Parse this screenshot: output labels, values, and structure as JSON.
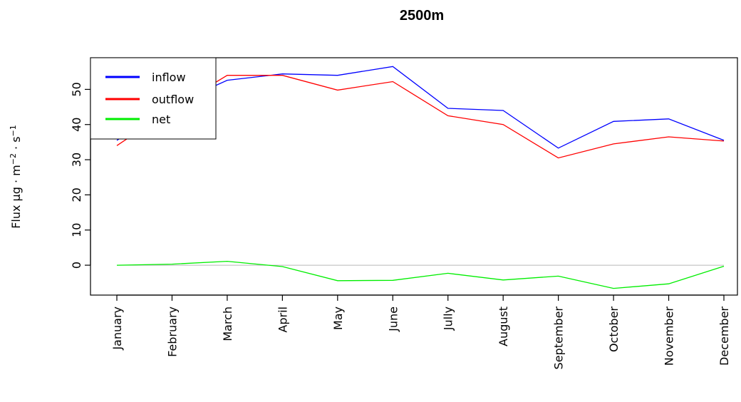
{
  "chart_data": {
    "type": "line",
    "title": "2500m",
    "ylabel_main": "Flux µg · m",
    "ylabel_exp1": "−2",
    "ylabel_mid": " · s",
    "ylabel_exp2": "−1",
    "xlabel": "",
    "categories": [
      "January",
      "February",
      "March",
      "April",
      "May",
      "June",
      "Jully",
      "August",
      "September",
      "October",
      "November",
      "December"
    ],
    "y_ticks": [
      0,
      10,
      20,
      30,
      40,
      50
    ],
    "ylim": [
      -8.5,
      59
    ],
    "reference_line": 0,
    "series": [
      {
        "name": "inflow",
        "color": "#0000ff",
        "values": [
          35.5,
          45.5,
          52.6,
          54.4,
          54.0,
          56.5,
          44.6,
          44.0,
          33.3,
          40.9,
          41.6,
          35.5
        ]
      },
      {
        "name": "outflow",
        "color": "#ff0000",
        "values": [
          34.0,
          44.5,
          54.0,
          54.0,
          49.8,
          52.2,
          42.5,
          40.0,
          30.5,
          34.5,
          36.5,
          35.3
        ]
      },
      {
        "name": "net",
        "color": "#00ee00",
        "values": [
          0.0,
          0.3,
          1.1,
          -0.4,
          -4.4,
          -4.3,
          -2.3,
          -4.2,
          -3.1,
          -6.6,
          -5.3,
          -0.3
        ]
      }
    ],
    "legend_position": "top-left",
    "grid": false
  }
}
